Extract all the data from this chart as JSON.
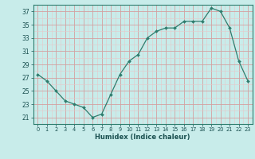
{
  "x": [
    0,
    1,
    2,
    3,
    4,
    5,
    6,
    7,
    8,
    9,
    10,
    11,
    12,
    13,
    14,
    15,
    16,
    17,
    18,
    19,
    20,
    21,
    22,
    23
  ],
  "y": [
    27.5,
    26.5,
    25.0,
    23.5,
    23.0,
    22.5,
    21.0,
    21.5,
    24.5,
    27.5,
    29.5,
    30.5,
    33.0,
    34.0,
    34.5,
    34.5,
    35.5,
    35.5,
    35.5,
    37.5,
    37.0,
    34.5,
    29.5,
    26.5
  ],
  "xlabel": "Humidex (Indice chaleur)",
  "ylim": [
    20.0,
    38.0
  ],
  "xlim": [
    -0.5,
    23.5
  ],
  "yticks": [
    21,
    23,
    25,
    27,
    29,
    31,
    33,
    35,
    37
  ],
  "xticks": [
    0,
    1,
    2,
    3,
    4,
    5,
    6,
    7,
    8,
    9,
    10,
    11,
    12,
    13,
    14,
    15,
    16,
    17,
    18,
    19,
    20,
    21,
    22,
    23
  ],
  "line_color": "#2e7d6e",
  "marker_color": "#2e7d6e",
  "bg_color": "#c8ecea",
  "major_grid_color": "#d4a0a0",
  "minor_grid_color": "#e8c8c8"
}
